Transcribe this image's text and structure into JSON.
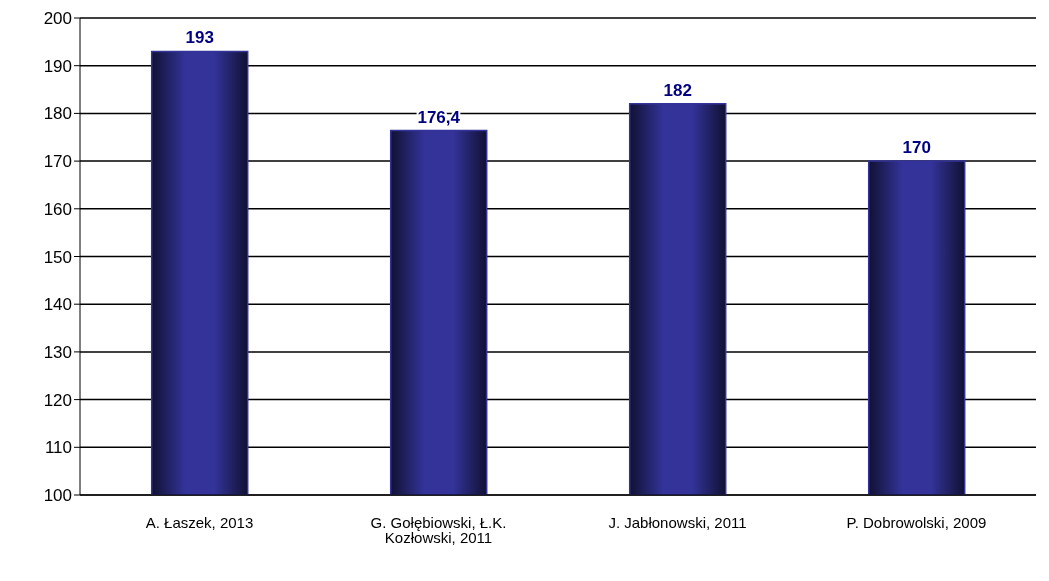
{
  "chart_data": {
    "type": "bar",
    "categories": [
      "A. Łaszek, 2013",
      "G. Gołębiowski, Ł.K. Kozłowski, 2011",
      "J. Jabłonowski, 2011",
      "P. Dobrowolski, 2009"
    ],
    "values": [
      193,
      176.4,
      182,
      170
    ],
    "value_labels": [
      "193",
      "176,4",
      "182",
      "170"
    ],
    "color": "#333399",
    "ylim": [
      100,
      200
    ],
    "yticks": [
      100,
      110,
      120,
      130,
      140,
      150,
      160,
      170,
      180,
      190,
      200
    ],
    "grid": "y"
  }
}
